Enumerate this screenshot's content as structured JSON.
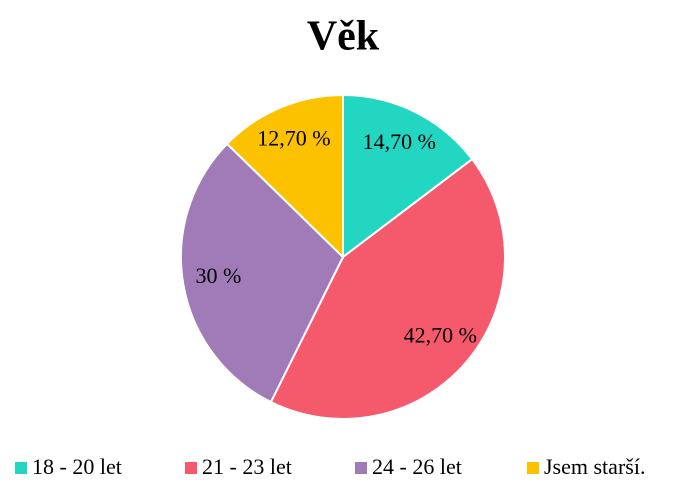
{
  "chart_data": {
    "type": "pie",
    "title": "Věk",
    "categories": [
      "18 - 20 let",
      "21 - 23 let",
      "24 - 26 let",
      "Jsem starší."
    ],
    "values": [
      14.7,
      42.7,
      30,
      12.7
    ],
    "value_labels": [
      "14,70 %",
      "42,70 %",
      "30 %",
      "12,70 %"
    ],
    "colors": [
      "#22d6c2",
      "#f4596c",
      "#a07bb8",
      "#fcc200"
    ],
    "legend": "bottom"
  }
}
